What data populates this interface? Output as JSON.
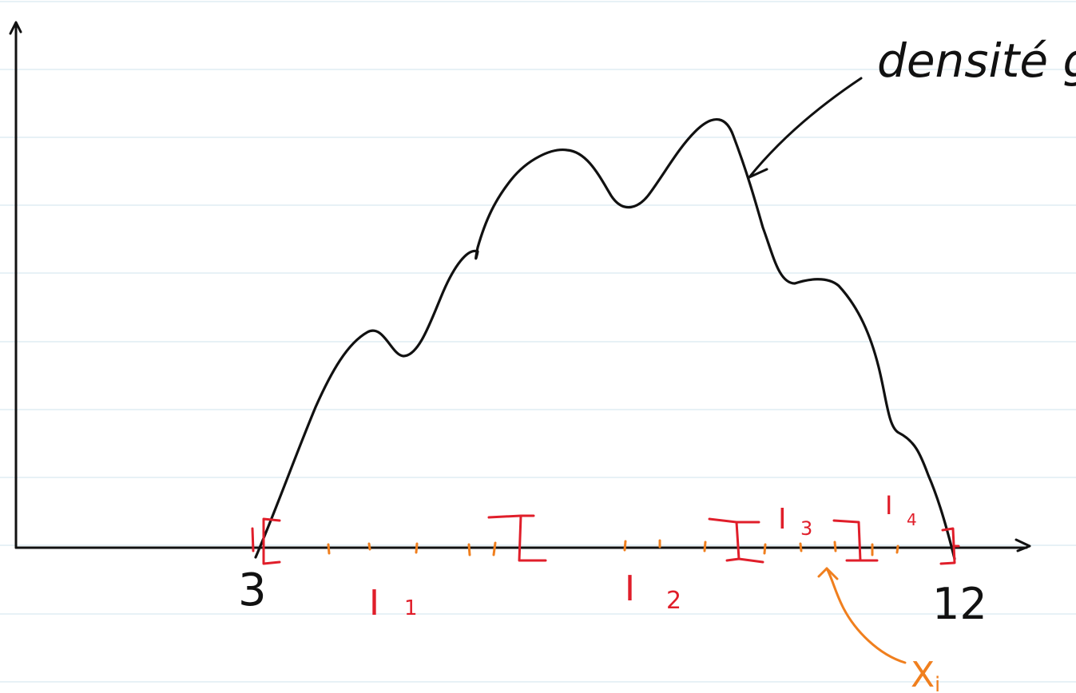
{
  "colors": {
    "ink": "#111111",
    "red": "#e01e2a",
    "orange": "#f07f1e",
    "ruled_line": "#cfe3ec",
    "background": "#ffffff"
  },
  "axis": {
    "x_start_label": "3",
    "x_end_label": "12"
  },
  "curve_label": "densité g",
  "intervals": [
    {
      "label": "I",
      "index": "1"
    },
    {
      "label": "I",
      "index": "2"
    },
    {
      "label": "I",
      "index": "3"
    },
    {
      "label": "I",
      "index": "4"
    }
  ],
  "sample_label": {
    "main": "X",
    "sub": "i"
  }
}
